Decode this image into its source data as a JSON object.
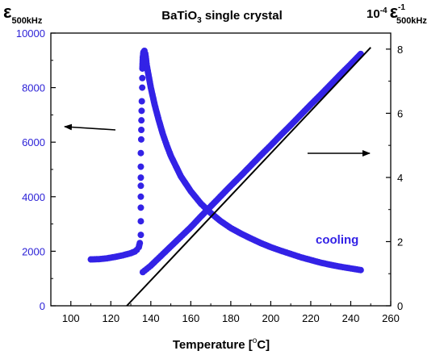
{
  "chart_data": {
    "type": "scatter",
    "title_parts": [
      "BaTiO",
      "3",
      " single crystal"
    ],
    "x_axis": {
      "label_parts": [
        "Temperature [",
        "o",
        "C]"
      ],
      "range": [
        90,
        260
      ],
      "ticks": [
        100,
        120,
        140,
        160,
        180,
        200,
        220,
        240,
        260
      ]
    },
    "y_left": {
      "label_symbol": "ε",
      "label_sub": "500kHz",
      "range": [
        0,
        10000
      ],
      "ticks": [
        0,
        2000,
        4000,
        6000,
        8000,
        10000
      ],
      "color": "#2a1fd6"
    },
    "y_right": {
      "label_prefix": "10",
      "label_prefix_exp": "-4",
      "label_symbol": "ε",
      "label_sup": "-1",
      "label_sub": "500kHz",
      "range": [
        0,
        8.5
      ],
      "ticks": [
        0,
        2,
        4,
        6,
        8
      ]
    },
    "annotation": "cooling",
    "marker_color": "#3322e6",
    "series": [
      {
        "axis": "left",
        "points": [
          [
            110,
            1700
          ],
          [
            114,
            1710
          ],
          [
            118,
            1740
          ],
          [
            122,
            1790
          ],
          [
            126,
            1850
          ],
          [
            130,
            1930
          ],
          [
            132,
            1990
          ],
          [
            133,
            2050
          ],
          [
            134,
            2150
          ],
          [
            134.5,
            2300
          ],
          [
            135,
            2600
          ],
          [
            135,
            3100
          ],
          [
            135,
            3600
          ],
          [
            135,
            4000
          ],
          [
            135,
            4400
          ],
          [
            135,
            4700
          ],
          [
            135,
            5100
          ],
          [
            135,
            5600
          ],
          [
            135.2,
            6100
          ],
          [
            135.3,
            6800
          ],
          [
            135.5,
            7500
          ],
          [
            135.7,
            8000
          ],
          [
            135.8,
            8700
          ],
          [
            136,
            9100
          ],
          [
            136.3,
            9300
          ],
          [
            136.8,
            9350
          ],
          [
            137.2,
            9250
          ],
          [
            137.6,
            9050
          ],
          [
            138,
            8800
          ],
          [
            139,
            8400
          ],
          [
            140,
            8000
          ],
          [
            142,
            7350
          ],
          [
            144,
            6800
          ],
          [
            146,
            6300
          ],
          [
            148,
            5880
          ],
          [
            150,
            5500
          ],
          [
            155,
            4750
          ],
          [
            160,
            4200
          ],
          [
            165,
            3750
          ],
          [
            170,
            3400
          ],
          [
            175,
            3100
          ],
          [
            180,
            2850
          ],
          [
            185,
            2650
          ],
          [
            190,
            2470
          ],
          [
            195,
            2300
          ],
          [
            200,
            2150
          ],
          [
            205,
            2020
          ],
          [
            210,
            1900
          ],
          [
            215,
            1780
          ],
          [
            220,
            1680
          ],
          [
            225,
            1580
          ],
          [
            230,
            1500
          ],
          [
            235,
            1430
          ],
          [
            240,
            1370
          ],
          [
            245,
            1310
          ]
        ]
      },
      {
        "axis": "right",
        "points": [
          [
            136,
            1.05
          ],
          [
            138,
            1.15
          ],
          [
            140,
            1.25
          ],
          [
            145,
            1.55
          ],
          [
            150,
            1.85
          ],
          [
            155,
            2.15
          ],
          [
            160,
            2.45
          ],
          [
            165,
            2.78
          ],
          [
            170,
            3.1
          ],
          [
            175,
            3.42
          ],
          [
            180,
            3.74
          ],
          [
            185,
            4.05
          ],
          [
            190,
            4.37
          ],
          [
            195,
            4.69
          ],
          [
            200,
            5.0
          ],
          [
            205,
            5.32
          ],
          [
            210,
            5.63
          ],
          [
            215,
            5.95
          ],
          [
            220,
            6.27
          ],
          [
            225,
            6.58
          ],
          [
            230,
            6.9
          ],
          [
            235,
            7.22
          ],
          [
            240,
            7.53
          ],
          [
            245,
            7.85
          ]
        ]
      }
    ],
    "fit_line": {
      "axis": "right",
      "x": [
        128,
        250
      ],
      "y": [
        0,
        7.85
      ]
    }
  }
}
